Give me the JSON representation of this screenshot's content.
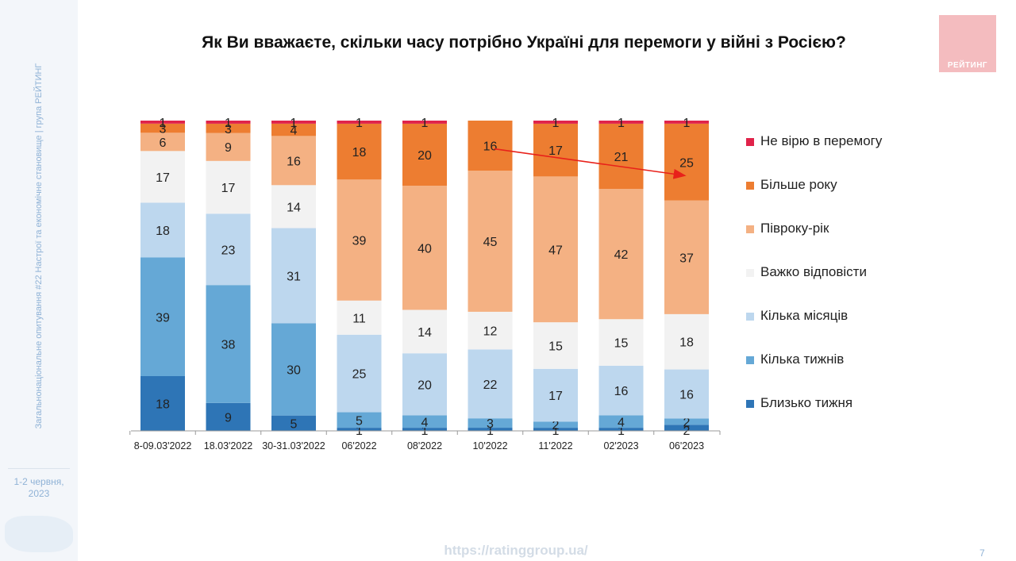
{
  "sidebar": {
    "vertical_text": "Загальнонаціональне опитування #22 Настрої та економічне становище | група РЕЙТИНГ",
    "date": "1-2 червня,\n2023"
  },
  "logo": {
    "text": "РЕЙТИНГ",
    "color": "#f4bcbf"
  },
  "footer": {
    "url": "https://ratinggroup.ua/",
    "page_number": "7"
  },
  "chart_data": {
    "type": "stacked-bar",
    "title": "Як Ви вважаєте, скільки часу потрібно Україні для перемоги у війні з Росією?",
    "categories": [
      "8-09.03'2022",
      "18.03'2022",
      "30-31.03'2022",
      "06'2022",
      "08'2022",
      "10'2022",
      "11'2022",
      "02'2023",
      "06'2023"
    ],
    "ylim": [
      0,
      100
    ],
    "grid": false,
    "legend_position": "right",
    "series": [
      {
        "name": "Близько тижня",
        "color": "#2e75b6",
        "values": [
          18,
          9,
          5,
          1,
          1,
          1,
          1,
          1,
          2
        ]
      },
      {
        "name": "Кілька тижнів",
        "color": "#65a8d6",
        "values": [
          39,
          38,
          30,
          5,
          4,
          3,
          2,
          4,
          2
        ]
      },
      {
        "name": "Кілька місяців",
        "color": "#bdd7ee",
        "values": [
          18,
          23,
          31,
          25,
          20,
          22,
          17,
          16,
          16
        ]
      },
      {
        "name": "Важко відповісти",
        "color": "#f2f2f2",
        "values": [
          17,
          17,
          14,
          11,
          14,
          12,
          15,
          15,
          18
        ]
      },
      {
        "name": "Півроку-рік",
        "color": "#f4b183",
        "values": [
          6,
          9,
          16,
          39,
          40,
          45,
          47,
          42,
          37
        ]
      },
      {
        "name": "Більше року",
        "color": "#ed7d31",
        "values": [
          3,
          3,
          4,
          18,
          20,
          16,
          17,
          21,
          25
        ]
      },
      {
        "name": "Не вірю в перемогу",
        "color": "#e0234a",
        "values": [
          1,
          1,
          1,
          1,
          1,
          0,
          1,
          1,
          1
        ]
      }
    ],
    "labels": [
      [
        "18",
        "9",
        "5",
        "1",
        "1",
        "1",
        "1",
        "1",
        "2"
      ],
      [
        "39",
        "38",
        "30",
        "5",
        "4",
        "3",
        "2",
        "4",
        "2"
      ],
      [
        "18",
        "23",
        "31",
        "25",
        "20",
        "22",
        "17",
        "16",
        "16"
      ],
      [
        "17",
        "17",
        "14",
        "11",
        "14",
        "12",
        "15",
        "15",
        "18"
      ],
      [
        "6",
        "9",
        "16",
        "39",
        "40",
        "45",
        "47",
        "42",
        "37"
      ],
      [
        "3",
        "3",
        "4",
        "18",
        "20",
        "16",
        "17",
        "21",
        "25"
      ],
      [
        "1",
        "1",
        "1",
        "1",
        "1",
        "",
        "1",
        "1",
        "1"
      ]
    ],
    "annotation": {
      "type": "trend-arrow",
      "color": "#e8211a",
      "from_category": "10'2022",
      "to_category": "06'2023",
      "series": "Більше року"
    }
  }
}
